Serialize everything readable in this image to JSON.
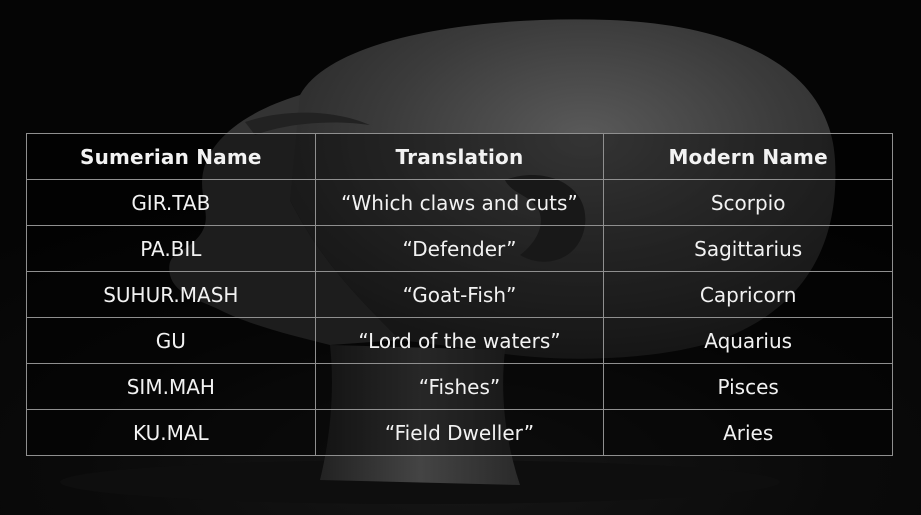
{
  "table": {
    "headers": [
      "Sumerian Name",
      "Translation",
      "Modern Name"
    ],
    "rows": [
      [
        "GIR.TAB",
        "“Which claws and cuts”",
        "Scorpio"
      ],
      [
        "PA.BIL",
        "“Defender”",
        "Sagittarius"
      ],
      [
        "SUHUR.MASH",
        "“Goat-Fish”",
        "Capricorn"
      ],
      [
        "GU",
        "“Lord of the waters”",
        "Aquarius"
      ],
      [
        "SIM.MAH",
        "“Fishes”",
        "Pisces"
      ],
      [
        "KU.MAL",
        "“Field Dweller”",
        "Aries"
      ]
    ]
  },
  "colors": {
    "background": "#050505",
    "sculpture": "#3a3a3a",
    "grid_lines": "#8f8f8f",
    "text": "#f2f2f2"
  }
}
